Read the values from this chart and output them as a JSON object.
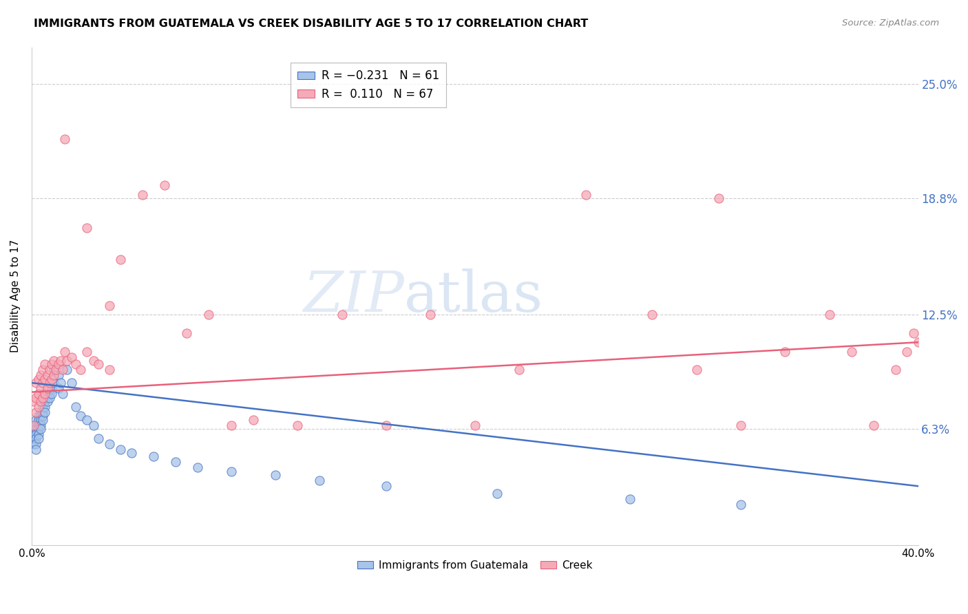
{
  "title": "IMMIGRANTS FROM GUATEMALA VS CREEK DISABILITY AGE 5 TO 17 CORRELATION CHART",
  "source": "Source: ZipAtlas.com",
  "ylabel": "Disability Age 5 to 17",
  "ytick_labels": [
    "25.0%",
    "18.8%",
    "12.5%",
    "6.3%"
  ],
  "ytick_values": [
    0.25,
    0.188,
    0.125,
    0.063
  ],
  "xlim": [
    0.0,
    0.4
  ],
  "ylim": [
    0.0,
    0.27
  ],
  "color_blue": "#a8c4e8",
  "color_pink": "#f5aab8",
  "line_color_blue": "#4472c4",
  "line_color_pink": "#e8607a",
  "background_color": "#ffffff",
  "watermark_zip": "ZIP",
  "watermark_atlas": "atlas",
  "blue_line_start_y": 0.088,
  "blue_line_end_y": 0.032,
  "pink_line_start_y": 0.083,
  "pink_line_end_y": 0.11,
  "blue_scatter_x": [
    0.001,
    0.001,
    0.001,
    0.001,
    0.002,
    0.002,
    0.002,
    0.002,
    0.002,
    0.002,
    0.002,
    0.003,
    0.003,
    0.003,
    0.003,
    0.003,
    0.003,
    0.004,
    0.004,
    0.004,
    0.004,
    0.004,
    0.005,
    0.005,
    0.005,
    0.005,
    0.006,
    0.006,
    0.006,
    0.007,
    0.007,
    0.008,
    0.008,
    0.009,
    0.009,
    0.01,
    0.01,
    0.012,
    0.012,
    0.013,
    0.014,
    0.016,
    0.018,
    0.02,
    0.022,
    0.025,
    0.028,
    0.03,
    0.035,
    0.04,
    0.045,
    0.055,
    0.065,
    0.075,
    0.09,
    0.11,
    0.13,
    0.16,
    0.21,
    0.27,
    0.32
  ],
  "blue_scatter_y": [
    0.063,
    0.06,
    0.058,
    0.055,
    0.068,
    0.065,
    0.063,
    0.06,
    0.058,
    0.055,
    0.052,
    0.07,
    0.068,
    0.065,
    0.063,
    0.06,
    0.058,
    0.072,
    0.07,
    0.068,
    0.065,
    0.063,
    0.075,
    0.072,
    0.07,
    0.068,
    0.078,
    0.075,
    0.072,
    0.08,
    0.078,
    0.082,
    0.08,
    0.085,
    0.082,
    0.095,
    0.088,
    0.092,
    0.085,
    0.088,
    0.082,
    0.095,
    0.088,
    0.075,
    0.07,
    0.068,
    0.065,
    0.058,
    0.055,
    0.052,
    0.05,
    0.048,
    0.045,
    0.042,
    0.04,
    0.038,
    0.035,
    0.032,
    0.028,
    0.025,
    0.022
  ],
  "pink_scatter_x": [
    0.001,
    0.001,
    0.002,
    0.002,
    0.002,
    0.003,
    0.003,
    0.003,
    0.004,
    0.004,
    0.004,
    0.005,
    0.005,
    0.005,
    0.006,
    0.006,
    0.006,
    0.007,
    0.007,
    0.008,
    0.008,
    0.009,
    0.009,
    0.01,
    0.01,
    0.011,
    0.012,
    0.013,
    0.014,
    0.015,
    0.016,
    0.018,
    0.02,
    0.022,
    0.025,
    0.028,
    0.03,
    0.035,
    0.04,
    0.05,
    0.06,
    0.07,
    0.08,
    0.09,
    0.1,
    0.12,
    0.14,
    0.16,
    0.18,
    0.2,
    0.22,
    0.25,
    0.28,
    0.3,
    0.32,
    0.34,
    0.36,
    0.37,
    0.38,
    0.39,
    0.395,
    0.398,
    0.4,
    0.015,
    0.025,
    0.035,
    0.31
  ],
  "pink_scatter_y": [
    0.065,
    0.078,
    0.072,
    0.08,
    0.088,
    0.075,
    0.082,
    0.09,
    0.078,
    0.085,
    0.092,
    0.08,
    0.088,
    0.095,
    0.082,
    0.09,
    0.098,
    0.085,
    0.092,
    0.088,
    0.095,
    0.09,
    0.098,
    0.092,
    0.1,
    0.095,
    0.098,
    0.1,
    0.095,
    0.105,
    0.1,
    0.102,
    0.098,
    0.095,
    0.105,
    0.1,
    0.098,
    0.095,
    0.155,
    0.19,
    0.195,
    0.115,
    0.125,
    0.065,
    0.068,
    0.065,
    0.125,
    0.065,
    0.125,
    0.065,
    0.095,
    0.19,
    0.125,
    0.095,
    0.065,
    0.105,
    0.125,
    0.105,
    0.065,
    0.095,
    0.105,
    0.115,
    0.11,
    0.22,
    0.172,
    0.13,
    0.188
  ]
}
